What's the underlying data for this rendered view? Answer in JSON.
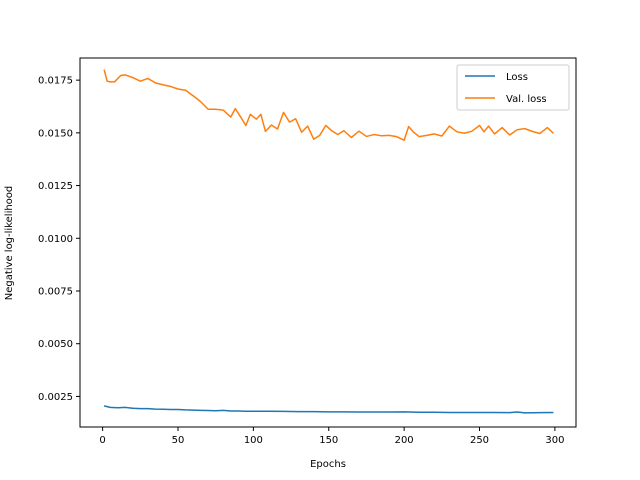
{
  "chart_data": {
    "type": "line",
    "title": "",
    "xlabel": "Epochs",
    "ylabel": "Negative log-likelihood",
    "xlim": [
      -15,
      314
    ],
    "ylim": [
      0.00105,
      0.01855
    ],
    "xticks": [
      0,
      50,
      100,
      150,
      200,
      250,
      300
    ],
    "xtick_labels": [
      "0",
      "50",
      "100",
      "150",
      "200",
      "250",
      "300"
    ],
    "yticks": [
      0.0025,
      0.005,
      0.0075,
      0.01,
      0.0125,
      0.015,
      0.0175
    ],
    "ytick_labels": [
      "0.0025",
      "0.0050",
      "0.0075",
      "0.0100",
      "0.0125",
      "0.0150",
      "0.0175"
    ],
    "grid": false,
    "legend_position": "top-right",
    "series": [
      {
        "name": "Loss",
        "color": "#1f77b4",
        "x": [
          1,
          5,
          10,
          15,
          20,
          25,
          30,
          35,
          40,
          45,
          50,
          55,
          60,
          65,
          70,
          75,
          80,
          85,
          90,
          95,
          100,
          110,
          120,
          130,
          140,
          150,
          160,
          170,
          180,
          190,
          200,
          210,
          220,
          230,
          240,
          250,
          260,
          270,
          275,
          280,
          290,
          299
        ],
        "y": [
          0.00205,
          0.00198,
          0.00196,
          0.00198,
          0.00194,
          0.00192,
          0.00192,
          0.0019,
          0.00189,
          0.00188,
          0.00188,
          0.00186,
          0.00185,
          0.00184,
          0.00183,
          0.00182,
          0.00184,
          0.00181,
          0.00181,
          0.0018,
          0.0018,
          0.0018,
          0.00179,
          0.00178,
          0.00178,
          0.00177,
          0.00177,
          0.00176,
          0.00176,
          0.00176,
          0.00177,
          0.00175,
          0.00175,
          0.00174,
          0.00174,
          0.00174,
          0.00174,
          0.00173,
          0.00176,
          0.00172,
          0.00173,
          0.00174
        ]
      },
      {
        "name": "Val. loss",
        "color": "#ff7f0e",
        "x": [
          1,
          3,
          5,
          8,
          12,
          15,
          20,
          25,
          30,
          35,
          40,
          45,
          50,
          55,
          60,
          65,
          70,
          75,
          80,
          85,
          88,
          92,
          95,
          98,
          102,
          105,
          108,
          112,
          116,
          120,
          124,
          128,
          132,
          136,
          140,
          144,
          148,
          152,
          156,
          160,
          165,
          170,
          175,
          180,
          185,
          190,
          195,
          200,
          203,
          206,
          210,
          215,
          220,
          225,
          230,
          235,
          240,
          245,
          250,
          253,
          256,
          260,
          265,
          270,
          275,
          280,
          285,
          290,
          295,
          299
        ],
        "y": [
          0.018,
          0.01745,
          0.01742,
          0.01742,
          0.01772,
          0.01775,
          0.01762,
          0.01745,
          0.01758,
          0.01737,
          0.01728,
          0.0172,
          0.01708,
          0.01702,
          0.01676,
          0.01648,
          0.01612,
          0.01612,
          0.01608,
          0.01575,
          0.01615,
          0.0157,
          0.01535,
          0.01588,
          0.01565,
          0.01588,
          0.01507,
          0.01537,
          0.01518,
          0.01597,
          0.01551,
          0.01567,
          0.01503,
          0.01532,
          0.0147,
          0.01488,
          0.01535,
          0.0151,
          0.01492,
          0.0151,
          0.01478,
          0.01508,
          0.01483,
          0.01492,
          0.01486,
          0.01488,
          0.01482,
          0.01465,
          0.0153,
          0.01505,
          0.01482,
          0.01488,
          0.01495,
          0.01485,
          0.01532,
          0.01505,
          0.01498,
          0.01508,
          0.01535,
          0.01505,
          0.01532,
          0.01495,
          0.01525,
          0.0149,
          0.01515,
          0.0152,
          0.01507,
          0.01497,
          0.01525,
          0.01498
        ]
      }
    ]
  }
}
